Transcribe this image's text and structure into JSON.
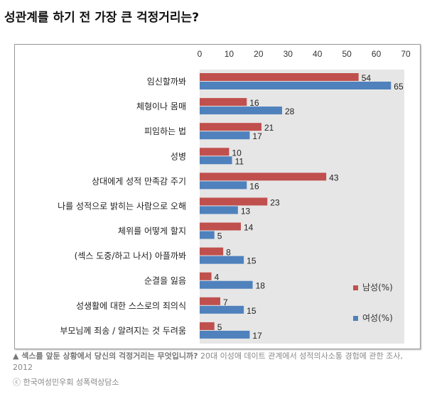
{
  "title": "성관계를 하기 전 가장 큰 걱정거리는?",
  "chart_data": {
    "type": "bar",
    "orientation": "horizontal",
    "categories": [
      "임신할까봐",
      "체형이나 몸매",
      "피임하는 법",
      "성병",
      "상대에게 성적 만족감 주기",
      "나를 성적으로 밝히는 사람으로 오해",
      "체위를 어떻게 할지",
      "(섹스 도중/하고 나서) 아플까봐",
      "순결을 잃음",
      "성생활에 대한 스스로의 죄의식",
      "부모님께 죄송 / 알려지는 것 두려움"
    ],
    "series": [
      {
        "name": "남성(%)",
        "color": "#c0504d",
        "values": [
          54,
          16,
          21,
          10,
          43,
          23,
          14,
          8,
          4,
          7,
          5
        ]
      },
      {
        "name": "여성(%)",
        "color": "#4f81bd",
        "values": [
          65,
          28,
          17,
          11,
          16,
          13,
          5,
          15,
          18,
          15,
          17
        ]
      }
    ],
    "xlim": [
      0,
      70
    ],
    "xticks": [
      0,
      10,
      20,
      30,
      40,
      50,
      60,
      70
    ],
    "axis_position": "top",
    "legend_placement": "bottom-right",
    "plot_background": "#e6e6e6"
  },
  "caption": {
    "bold": "▲ 섹스를 앞둔 상황에서 당신의 걱정거리는 무엇입니까?",
    "rest": " 20대 이성애 데이트 관계에서 성적의사소통 경험에 관한 조사, 2012"
  },
  "copyright": "ⓒ 한국여성민우회 성폭력상담소"
}
